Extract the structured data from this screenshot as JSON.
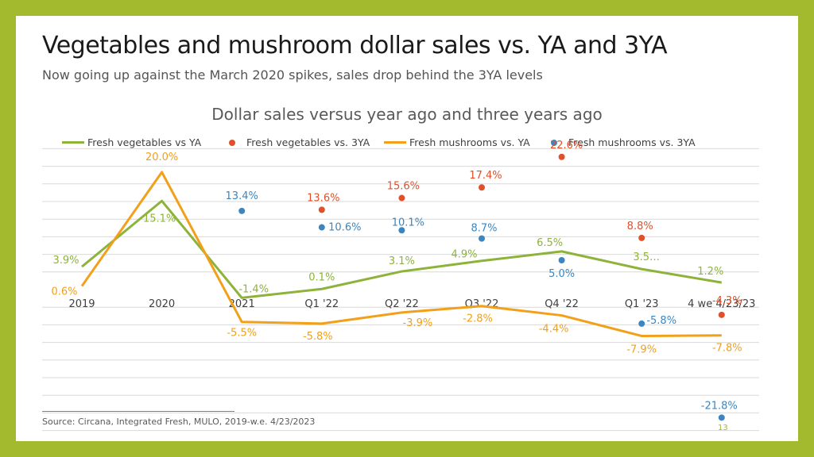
{
  "slide": {
    "title": "Vegetables and mushroom dollar sales vs. YA and 3YA",
    "subtitle": "Now going up against the March 2020 spikes, sales drop behind the 3YA levels",
    "source": "Source: Circana, Integrated Fresh, MULO, 2019-w.e. 4/23/2023",
    "page_number": "13"
  },
  "colors": {
    "background": "#a3b92e",
    "veg_ya": "#8db33a",
    "veg_3ya": "#e0502a",
    "mush_ya": "#f2a01a",
    "mush_3ya": "#3b86c0",
    "gridline": "#d9d9d9"
  },
  "chart_data": {
    "type": "line",
    "title": "Dollar sales versus year ago and three years ago",
    "categories": [
      "2019",
      "2020",
      "2021",
      "Q1 '22",
      "Q2 '22",
      "Q3 '22",
      "Q4 '22",
      "Q1 '23",
      "4 we 4/23/23"
    ],
    "ylim": [
      -26,
      26
    ],
    "grid": true,
    "legend_position": "top",
    "series": [
      {
        "name": "Fresh vegetables vs YA",
        "kind": "line",
        "color_key": "veg_ya",
        "values": [
          3.9,
          15.1,
          -1.4,
          0.1,
          3.1,
          4.9,
          6.5,
          3.5,
          1.2
        ],
        "labels": [
          "3.9%",
          "15.1%",
          "-1.4%",
          "0.1%",
          "3.1%",
          "4.9%",
          "6.5%",
          "3.5…",
          "1.2%"
        ]
      },
      {
        "name": "Fresh vegetables vs. 3YA",
        "kind": "dots",
        "color_key": "veg_3ya",
        "values": [
          null,
          null,
          null,
          13.6,
          15.6,
          17.4,
          22.6,
          8.8,
          -4.3
        ],
        "labels": [
          "",
          "",
          "",
          "13.6%",
          "15.6%",
          "17.4%",
          "22.6%",
          "8.8%",
          "-4.3%"
        ]
      },
      {
        "name": "Fresh mushrooms vs. YA",
        "kind": "line",
        "color_key": "mush_ya",
        "values": [
          0.6,
          20.0,
          -5.5,
          -5.8,
          -3.9,
          -2.8,
          -4.4,
          -7.9,
          -7.8
        ],
        "labels": [
          "0.6%",
          "20.0%",
          "-5.5%",
          "-5.8%",
          "-3.9%",
          "-2.8%",
          "-4.4%",
          "-7.9%",
          "-7.8%"
        ]
      },
      {
        "name": "Fresh mushrooms vs. 3YA",
        "kind": "dots",
        "color_key": "mush_3ya",
        "values": [
          null,
          null,
          13.4,
          10.6,
          10.1,
          8.7,
          5.0,
          -5.8,
          -21.8
        ],
        "labels": [
          "",
          "",
          "13.4%",
          "10.6%",
          "10.1%",
          "8.7%",
          "5.0%",
          "-5.8%",
          "-21.8%"
        ]
      }
    ]
  }
}
